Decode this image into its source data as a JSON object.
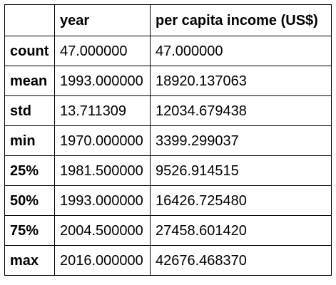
{
  "table": {
    "columns": [
      "year",
      "per capita income (US$)"
    ],
    "rows": [
      {
        "label": "count",
        "values": [
          "47.000000",
          "47.000000"
        ]
      },
      {
        "label": "mean",
        "values": [
          "1993.000000",
          "18920.137063"
        ]
      },
      {
        "label": "std",
        "values": [
          "13.711309",
          "12034.679438"
        ]
      },
      {
        "label": "min",
        "values": [
          "1970.000000",
          "3399.299037"
        ]
      },
      {
        "label": "25%",
        "values": [
          "1981.500000",
          "9526.914515"
        ]
      },
      {
        "label": "50%",
        "values": [
          "1993.000000",
          "16426.725480"
        ]
      },
      {
        "label": "75%",
        "values": [
          "2004.500000",
          "27458.601420"
        ]
      },
      {
        "label": "max",
        "values": [
          "2016.000000",
          "42676.468370"
        ]
      }
    ]
  }
}
